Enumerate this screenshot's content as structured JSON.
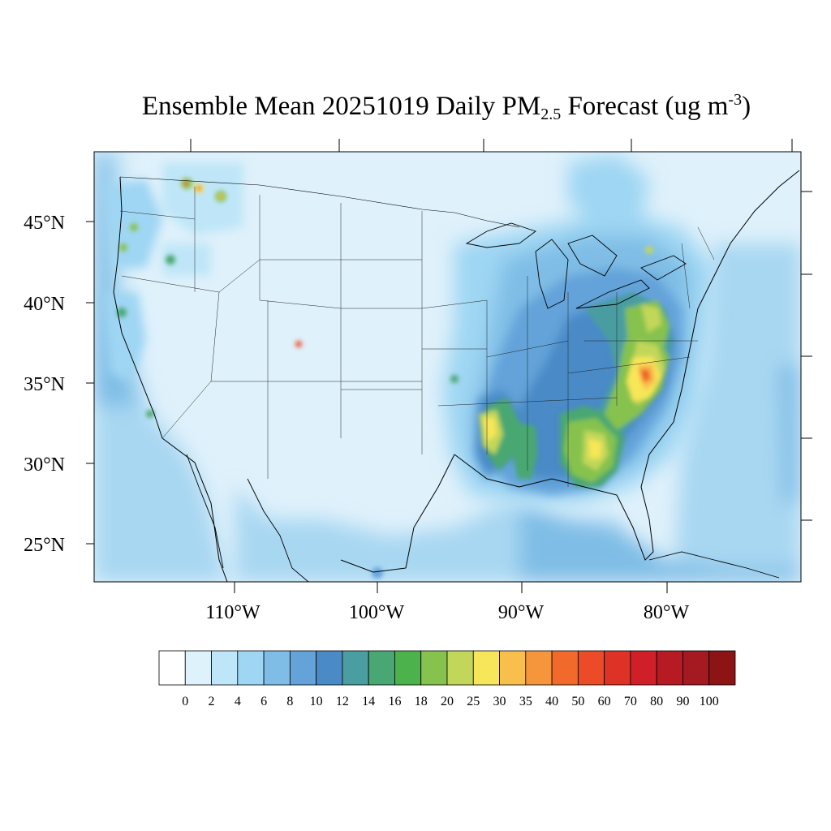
{
  "title": {
    "main": "Ensemble Mean 20251019 Daily PM",
    "subscript": "2.5",
    "after": " Forecast (ug m",
    "superscript": "-3",
    "close": ")"
  },
  "map": {
    "lat_labels": [
      "45°N",
      "40°N",
      "35°N",
      "30°N",
      "25°N"
    ],
    "lon_labels": [
      "110°W",
      "100°W",
      "90°W",
      "80°W"
    ],
    "water_color": "#bfe3f7",
    "land_base_color": "#dff1fb"
  },
  "colorbar": {
    "labels": [
      "0",
      "2",
      "4",
      "6",
      "8",
      "10",
      "12",
      "14",
      "16",
      "18",
      "20",
      "25",
      "30",
      "35",
      "40",
      "50",
      "60",
      "70",
      "80",
      "90",
      "100"
    ],
    "colors": [
      "#ffffff",
      "#def2fb",
      "#bee6f8",
      "#9ed6f3",
      "#7fbde6",
      "#63a3d9",
      "#4a8ac7",
      "#4a9da0",
      "#48a772",
      "#4cb34c",
      "#86c24e",
      "#c2d75a",
      "#f7e659",
      "#f8bf4d",
      "#f6963c",
      "#f26a2b",
      "#eb4b26",
      "#df3226",
      "#d11f2a",
      "#b61b24",
      "#a51a21",
      "#8c1414"
    ]
  }
}
